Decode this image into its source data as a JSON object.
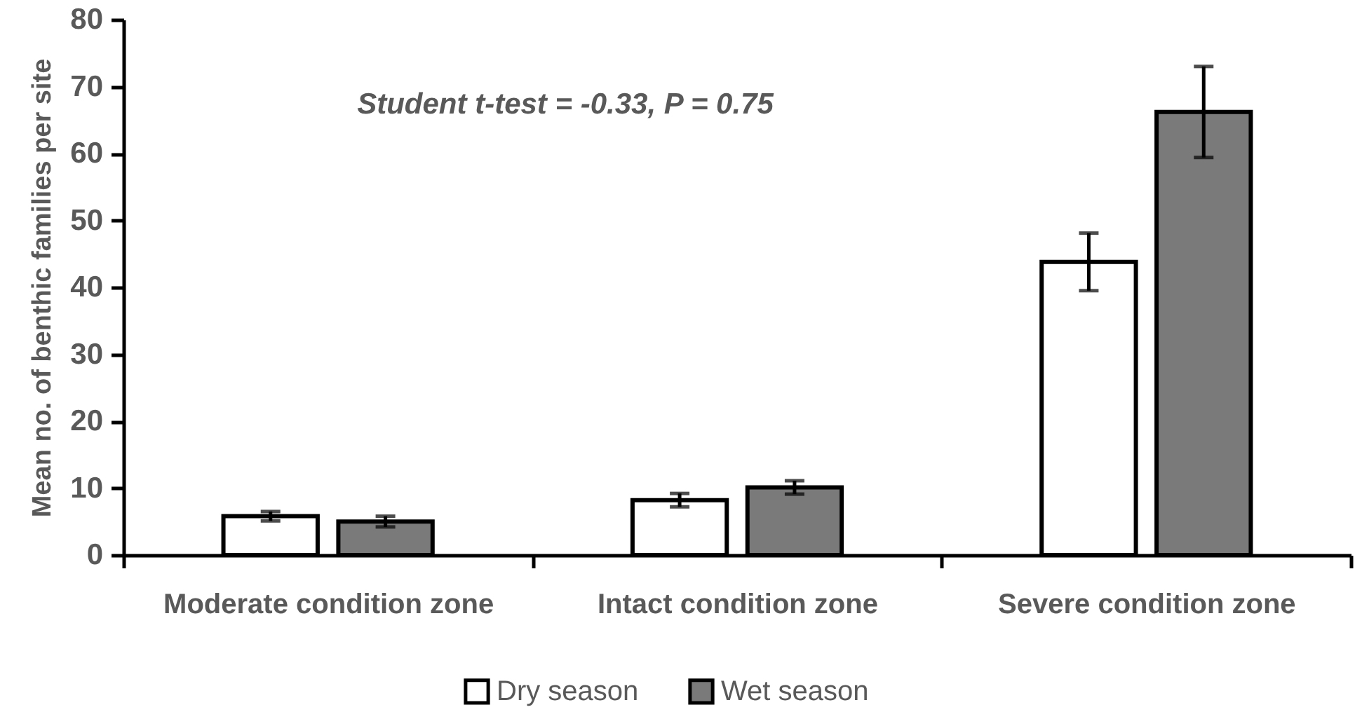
{
  "chart_data": {
    "type": "bar",
    "ylabel": "Mean no. of benthic families per site",
    "categories": [
      "Moderate condition zone",
      "Intact condition zone",
      "Severe condition zone"
    ],
    "series": [
      {
        "name": "Dry season",
        "color": "#ffffff",
        "values": [
          5.8,
          8.2,
          43.8
        ],
        "errors": [
          0.7,
          1.0,
          4.3
        ]
      },
      {
        "name": "Wet season",
        "color": "#7a7a7a",
        "values": [
          5.0,
          10.1,
          66.2
        ],
        "errors": [
          0.8,
          1.0,
          6.8
        ]
      }
    ],
    "ylim": [
      0,
      80
    ],
    "yticks": [
      0,
      10,
      20,
      30,
      40,
      50,
      60,
      70,
      80
    ],
    "grid": false,
    "legend": "bottom",
    "annotations": [
      "Student t-test = -0.33, P = 0.75"
    ]
  }
}
